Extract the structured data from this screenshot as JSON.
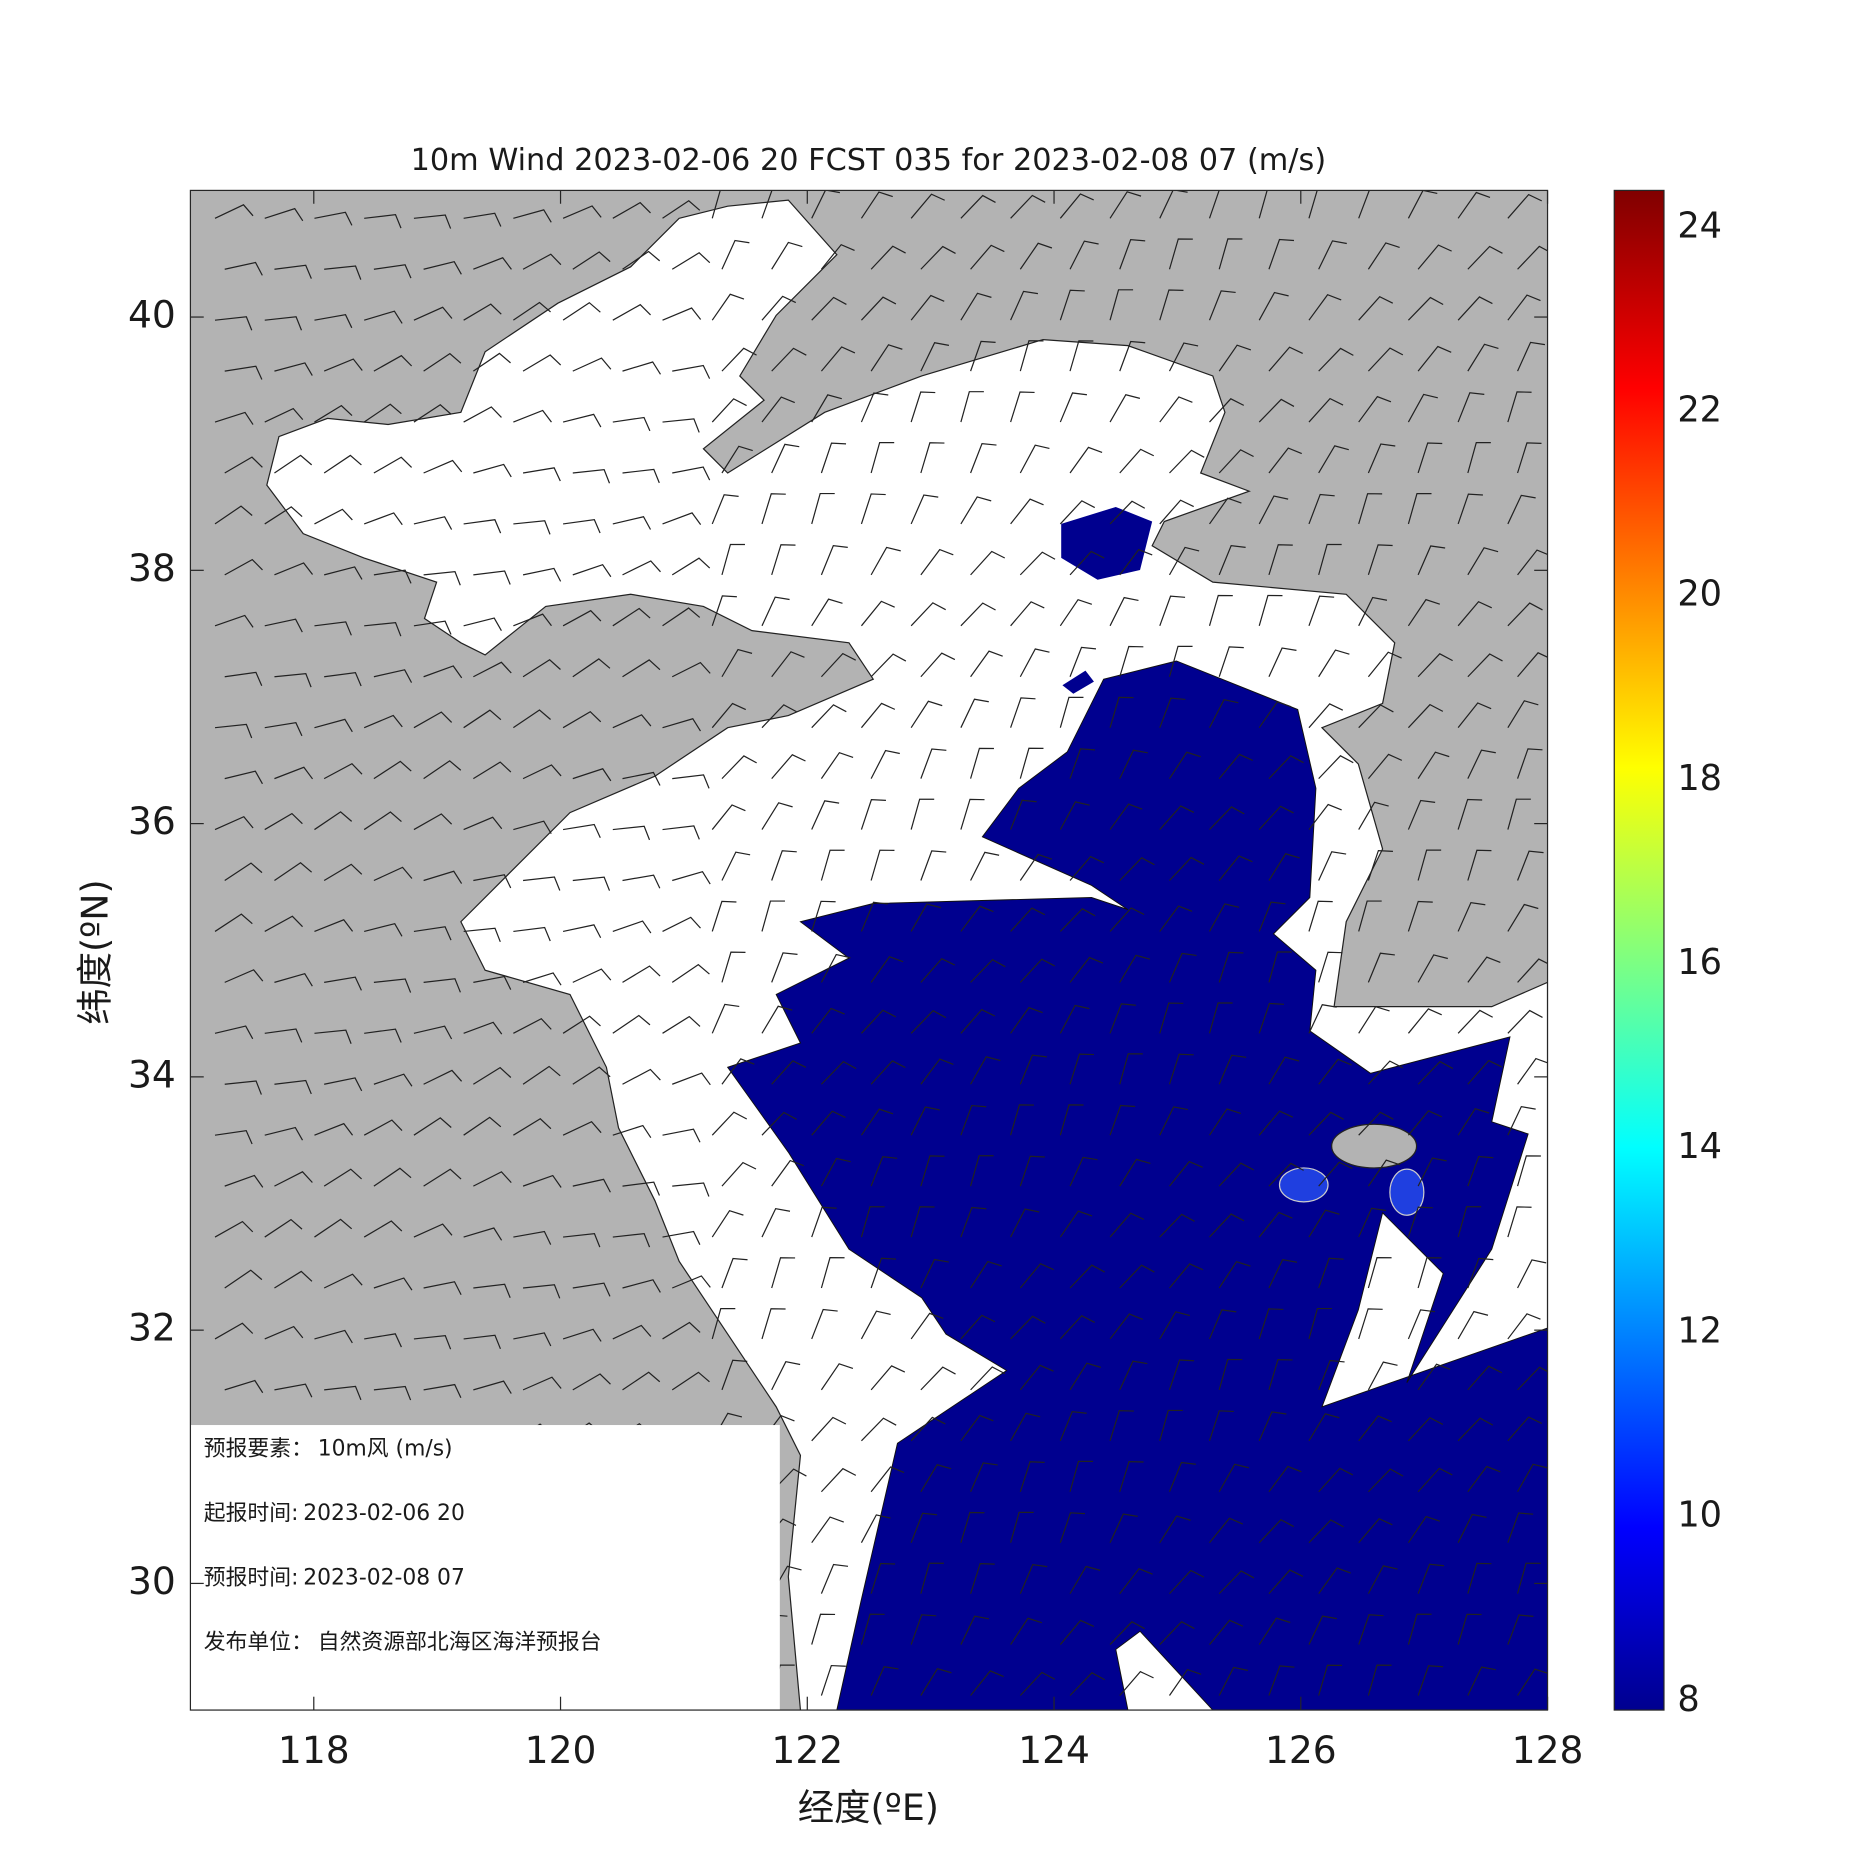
{
  "title": "10m Wind 2023-02-06 20 FCST 035 for 2023-02-08 07 (m/s)",
  "map": {
    "xlabel": "经度(ºE)",
    "ylabel": "纬度(ºN)",
    "xlim": [
      117,
      128
    ],
    "ylim": [
      29,
      41
    ],
    "xticks": [
      118,
      120,
      122,
      124,
      126,
      128
    ],
    "yticks": [
      30,
      32,
      34,
      36,
      38,
      40
    ]
  },
  "colorbar": {
    "lim": [
      7.9,
      24.4
    ],
    "ticks": [
      8,
      10,
      12,
      14,
      16,
      18,
      20,
      22,
      24
    ]
  },
  "info": [
    {
      "label": "预报要素：",
      "value": "10m风  (m/s)"
    },
    {
      "label": "起报时间:",
      "value": "2023-02-06 20"
    },
    {
      "label": "预报时间:",
      "value": "2023-02-08 07"
    },
    {
      "label": "发布单位：",
      "value": "自然资源部北海区海洋预报台"
    }
  ]
}
